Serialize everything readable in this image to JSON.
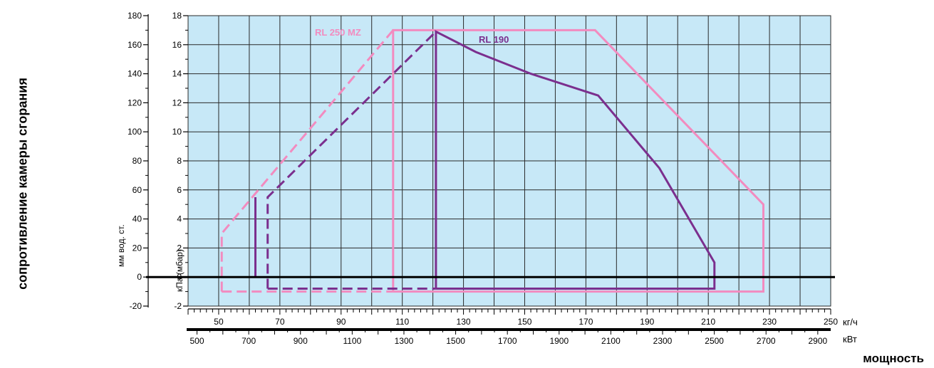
{
  "chart_data": {
    "type": "line",
    "ylabel": "сопротивление камеры сгорания",
    "xlabel": "мощность",
    "axes": {
      "y_left_mm": {
        "label": "мм вод. ст.",
        "ticks": [
          180,
          160,
          140,
          120,
          100,
          80,
          60,
          40,
          20,
          0,
          -20
        ],
        "range": [
          -20,
          180
        ]
      },
      "y_left_kpa": {
        "label": "кПа (мбар)",
        "ticks": [
          18,
          16,
          14,
          12,
          10,
          8,
          6,
          4,
          2,
          0,
          -2
        ],
        "range": [
          -2,
          18
        ]
      },
      "x_kg": {
        "unit": "кг/ч",
        "ticks": [
          50,
          70,
          90,
          110,
          130,
          150,
          170,
          190,
          210,
          230,
          250
        ],
        "range": [
          40,
          250
        ]
      },
      "x_kw": {
        "unit": "кВт",
        "ticks": [
          500,
          700,
          900,
          1100,
          1300,
          1500,
          1700,
          1900,
          2100,
          2300,
          2500,
          2700,
          2900
        ],
        "range": [
          460,
          2950
        ]
      }
    },
    "grid": true,
    "colors": {
      "background": "#c7e8f7",
      "grid": "#2a2a2a",
      "rl250": "#f28bbf",
      "rl190": "#7b2f8e",
      "zero_line": "#000000"
    },
    "series": [
      {
        "name": "RL 250 MZ",
        "color": "#f28bbf",
        "segments": [
          {
            "style": "solid",
            "points": [
              [
                107,
                -1
              ],
              [
                107,
                17
              ],
              [
                173,
                17
              ],
              [
                228,
                5
              ],
              [
                228,
                -1
              ],
              [
                107,
                -1
              ]
            ]
          },
          {
            "style": "dashed",
            "points": [
              [
                51,
                -1
              ],
              [
                51,
                3
              ],
              [
                107,
                17
              ]
            ]
          },
          {
            "style": "dashed",
            "points": [
              [
                51,
                -1
              ],
              [
                107,
                -1
              ]
            ]
          }
        ]
      },
      {
        "name": "RL 190",
        "color": "#7b2f8e",
        "segments": [
          {
            "style": "solid",
            "points": [
              [
                121,
                -0.8
              ],
              [
                121,
                16.9
              ],
              [
                134,
                15.5
              ],
              [
                152,
                14
              ],
              [
                174,
                12.5
              ],
              [
                194,
                7.5
              ],
              [
                212,
                1
              ],
              [
                212,
                -0.8
              ],
              [
                121,
                -0.8
              ]
            ]
          },
          {
            "style": "solid",
            "points": [
              [
                62,
                0
              ],
              [
                62,
                5.5
              ]
            ]
          },
          {
            "style": "dashed",
            "points": [
              [
                66,
                -0.8
              ],
              [
                66,
                5.5
              ],
              [
                121,
                16.9
              ]
            ]
          },
          {
            "style": "dashed",
            "points": [
              [
                66,
                -0.8
              ],
              [
                121,
                -0.8
              ]
            ]
          }
        ]
      }
    ]
  }
}
